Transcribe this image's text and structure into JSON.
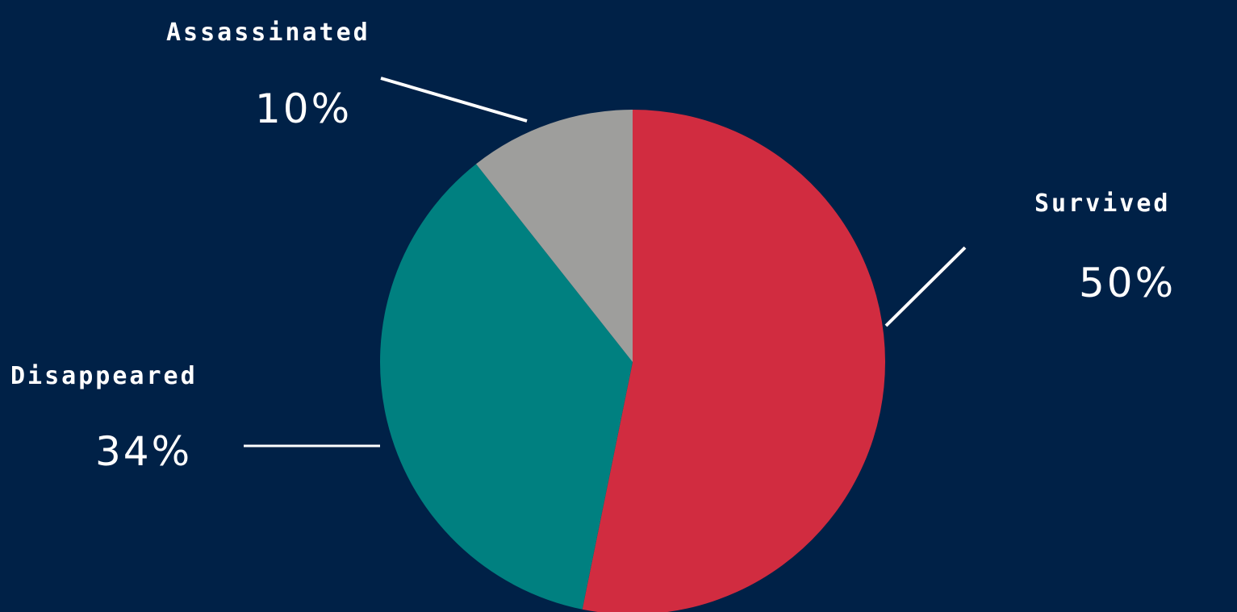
{
  "chart_data": {
    "type": "pie",
    "slices": [
      {
        "label": "Survived",
        "display": "50%",
        "value": 50,
        "color": "#D12C40"
      },
      {
        "label": "Disappeared",
        "display": "34%",
        "value": 34,
        "color": "#008080"
      },
      {
        "label": "Assassinated",
        "display": "10%",
        "value": 10,
        "color": "#9E9E9C"
      }
    ],
    "background_color": "#002147",
    "leader_line_color": "#FFFFFF"
  }
}
